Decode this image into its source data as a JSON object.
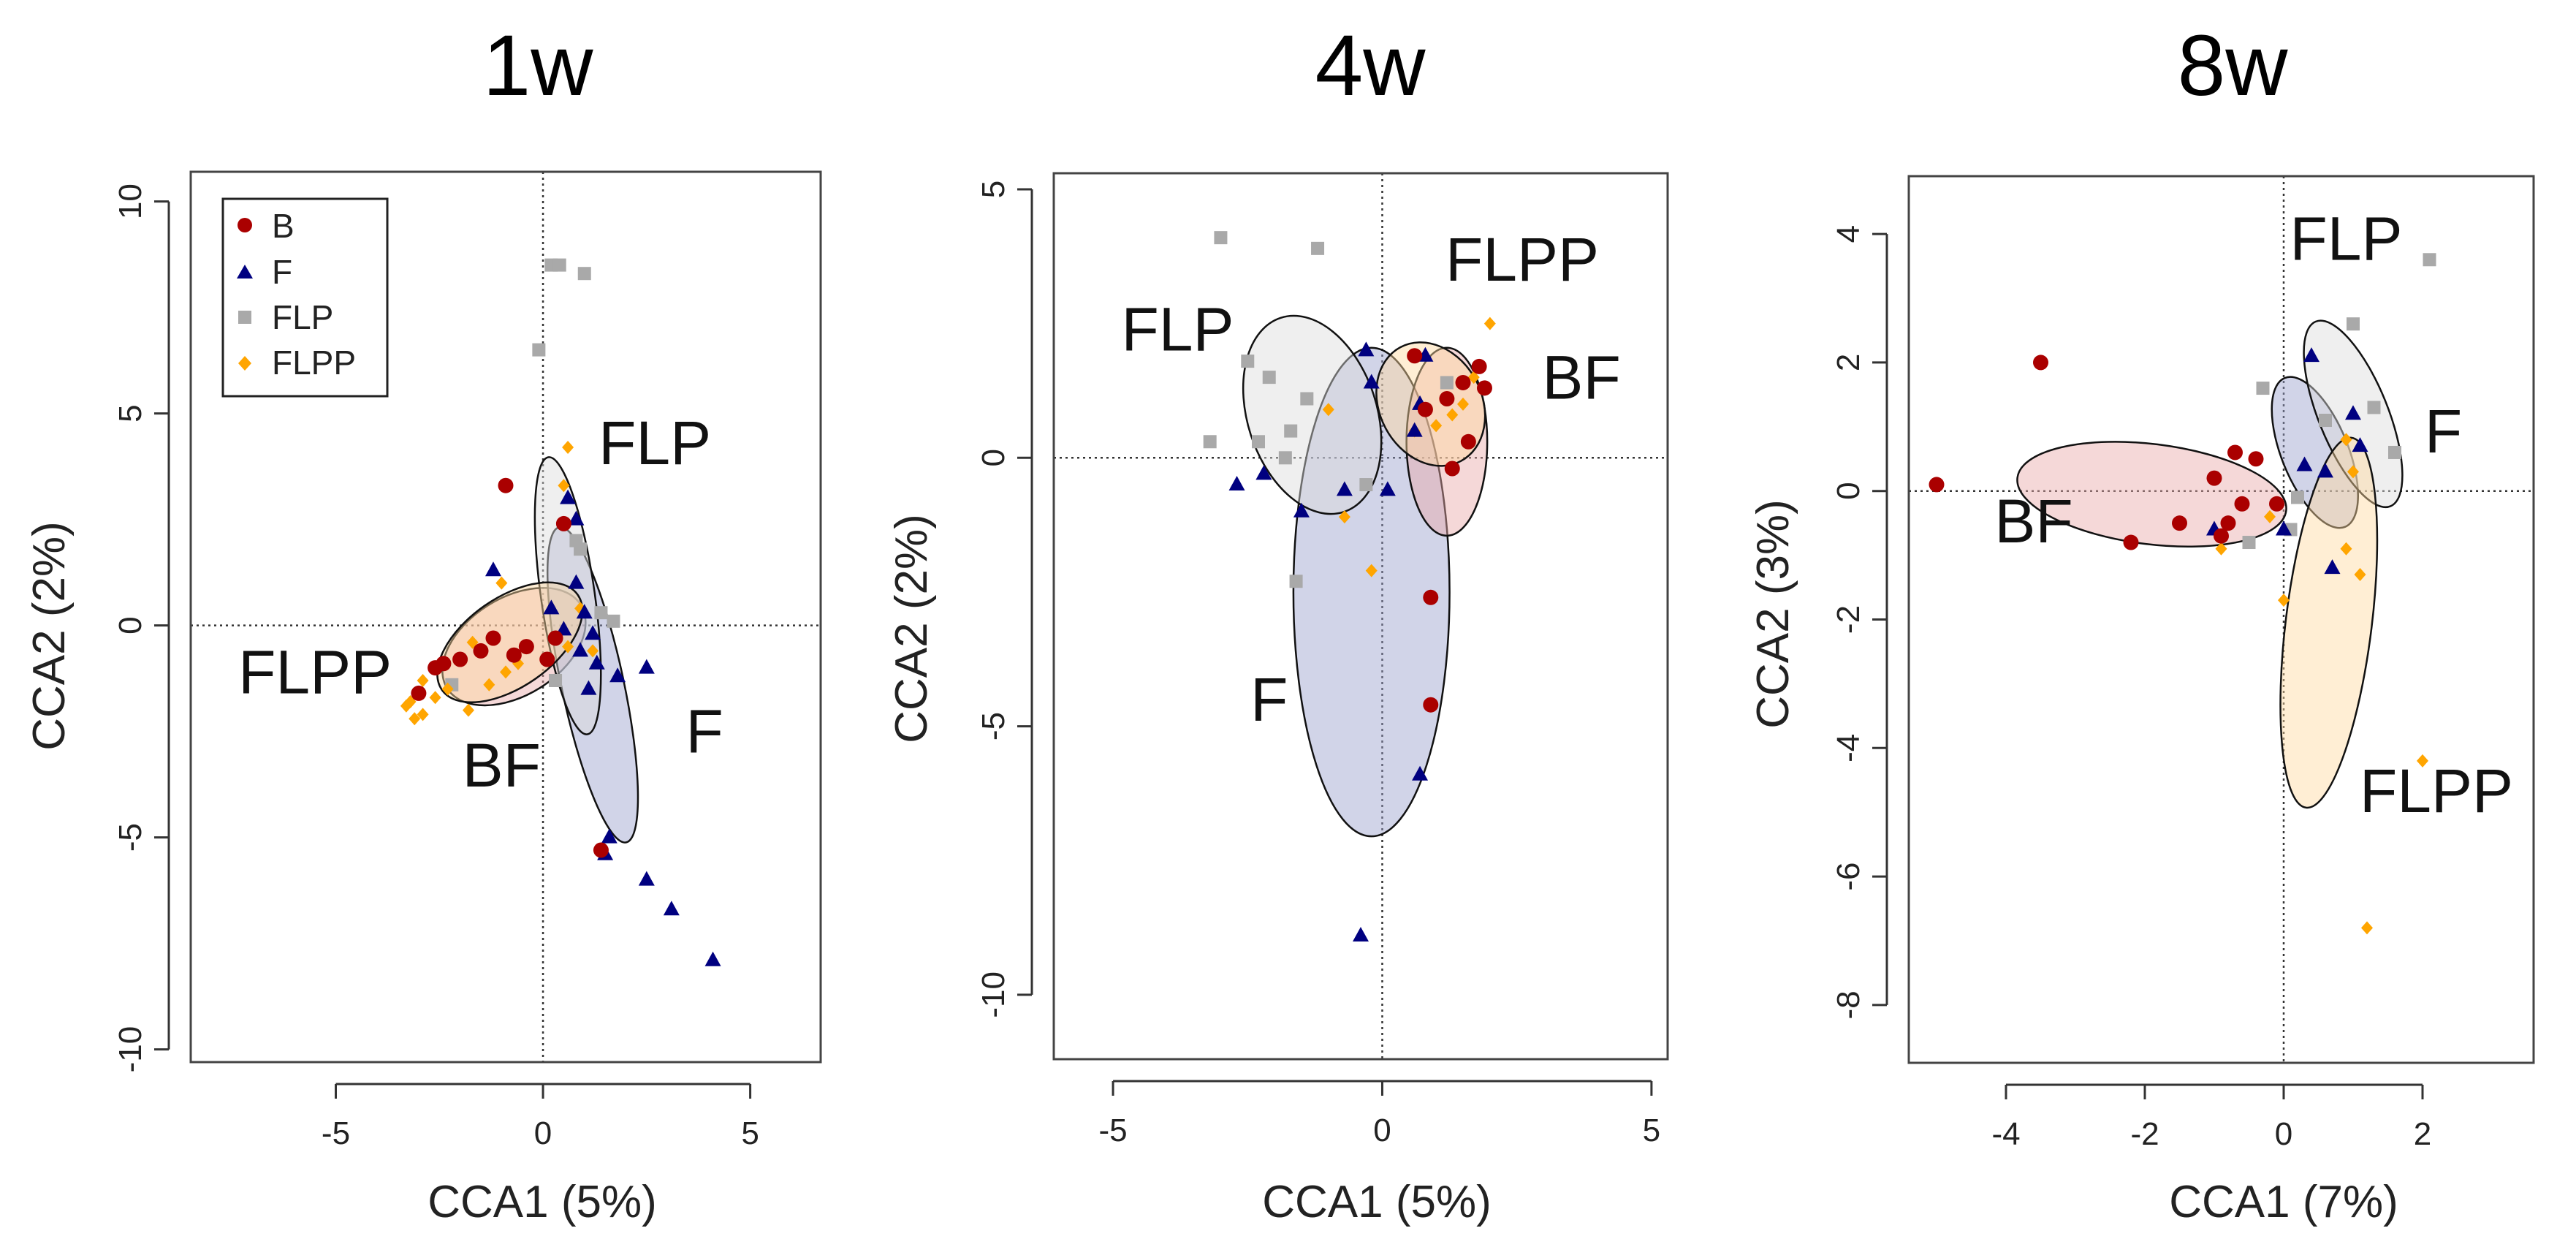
{
  "colors": {
    "B": "#aa0000",
    "F": "#000080",
    "FLP": "#a9a9a9",
    "FLPP": "#ffa500",
    "ellipse_B": "#e8a8a8",
    "ellipse_F": "#9aa0cc",
    "ellipse_FLP": "#dcdcdc",
    "ellipse_FLPP": "#ffd9a0"
  },
  "legend": {
    "entries": [
      {
        "label": "B",
        "group": "B",
        "marker": "circle"
      },
      {
        "label": "F",
        "group": "F",
        "marker": "triangle"
      },
      {
        "label": "FLP",
        "group": "FLP",
        "marker": "square"
      },
      {
        "label": "FLPP",
        "group": "FLPP",
        "marker": "diamond"
      }
    ]
  },
  "chart_data": [
    {
      "type": "scatter",
      "title": "1w",
      "xlabel": "CCA1 (5%)",
      "ylabel": "CCA2 (2%)",
      "xlim": [
        -8.5,
        6.7
      ],
      "ylim": [
        -10.3,
        10.7
      ],
      "xticks": [
        -5,
        0,
        5
      ],
      "yticks": [
        -10,
        -5,
        0,
        5,
        10
      ],
      "xtick_labels": [
        "-5",
        "0",
        "5"
      ],
      "ytick_labels": [
        "-10",
        "-5",
        "0",
        "5",
        "10"
      ],
      "refline_x": 0,
      "refline_y": 0,
      "has_legend": true,
      "group_labels": [
        {
          "text": "FLP",
          "x": 2.7,
          "y": 3.8
        },
        {
          "text": "FLPP",
          "x": -5.5,
          "y": -1.6
        },
        {
          "text": "BF",
          "x": -1.0,
          "y": -3.8
        },
        {
          "text": "F",
          "x": 3.9,
          "y": -3.0
        }
      ],
      "ellipses": [
        {
          "group": "B",
          "cx": -0.7,
          "cy": -0.5,
          "rx": 1.9,
          "ry": 1.15,
          "angle": 32
        },
        {
          "group": "F",
          "cx": 1.2,
          "cy": -1.4,
          "rx": 0.75,
          "ry": 3.8,
          "angle": 12
        },
        {
          "group": "FLP",
          "cx": 0.6,
          "cy": 0.7,
          "rx": 0.65,
          "ry": 3.3,
          "angle": 8
        },
        {
          "group": "FLPP",
          "cx": -0.8,
          "cy": -0.4,
          "rx": 2.0,
          "ry": 1.05,
          "angle": 35
        }
      ],
      "series": [
        {
          "name": "B",
          "points": [
            [
              -0.9,
              3.3
            ],
            [
              0.5,
              2.4
            ],
            [
              -3.0,
              -1.6
            ],
            [
              -2.6,
              -1.0
            ],
            [
              -2.4,
              -0.9
            ],
            [
              -2.0,
              -0.8
            ],
            [
              -1.5,
              -0.6
            ],
            [
              -1.2,
              -0.3
            ],
            [
              -0.7,
              -0.7
            ],
            [
              -0.4,
              -0.5
            ],
            [
              0.1,
              -0.8
            ],
            [
              0.3,
              -0.3
            ],
            [
              1.4,
              -5.3
            ]
          ]
        },
        {
          "name": "F",
          "points": [
            [
              -1.2,
              1.3
            ],
            [
              0.6,
              3.0
            ],
            [
              0.8,
              2.5
            ],
            [
              0.2,
              0.4
            ],
            [
              0.8,
              1.0
            ],
            [
              1.0,
              0.3
            ],
            [
              1.2,
              -0.2
            ],
            [
              0.9,
              -0.6
            ],
            [
              1.3,
              -0.9
            ],
            [
              1.8,
              -1.2
            ],
            [
              2.5,
              -1.0
            ],
            [
              1.1,
              -1.5
            ],
            [
              0.5,
              -0.1
            ],
            [
              1.6,
              -5.0
            ],
            [
              1.5,
              -5.4
            ],
            [
              2.5,
              -6.0
            ],
            [
              3.1,
              -6.7
            ],
            [
              4.1,
              -7.9
            ]
          ]
        },
        {
          "name": "FLP",
          "points": [
            [
              0.2,
              8.5
            ],
            [
              0.4,
              8.5
            ],
            [
              1.0,
              8.3
            ],
            [
              -0.1,
              6.5
            ],
            [
              0.8,
              2.0
            ],
            [
              0.9,
              1.8
            ],
            [
              1.4,
              0.3
            ],
            [
              1.7,
              0.1
            ],
            [
              -2.2,
              -1.4
            ],
            [
              0.3,
              -1.3
            ]
          ]
        },
        {
          "name": "FLPP",
          "points": [
            [
              0.6,
              4.2
            ],
            [
              0.5,
              3.3
            ],
            [
              -1.0,
              1.0
            ],
            [
              -1.7,
              -0.4
            ],
            [
              -2.9,
              -1.3
            ],
            [
              -3.2,
              -1.8
            ],
            [
              -3.3,
              -1.9
            ],
            [
              -3.1,
              -2.2
            ],
            [
              -2.9,
              -2.1
            ],
            [
              -2.6,
              -1.7
            ],
            [
              -2.3,
              -1.5
            ],
            [
              -1.8,
              -2.0
            ],
            [
              -1.3,
              -1.4
            ],
            [
              -0.9,
              -1.1
            ],
            [
              -0.6,
              -0.9
            ],
            [
              0.9,
              0.4
            ],
            [
              1.2,
              -0.6
            ],
            [
              0.6,
              -0.5
            ]
          ]
        }
      ]
    },
    {
      "type": "scatter",
      "title": "4w",
      "xlabel": "CCA1 (5%)",
      "ylabel": "CCA2 (2%)",
      "xlim": [
        -6.1,
        5.3
      ],
      "ylim": [
        -11.2,
        5.3
      ],
      "xticks": [
        -5,
        0,
        5
      ],
      "yticks": [
        -10,
        -5,
        0,
        5
      ],
      "xtick_labels": [
        "-5",
        "0",
        "5"
      ],
      "ytick_labels": [
        "-10",
        "-5",
        "0",
        "5"
      ],
      "refline_x": 0,
      "refline_y": 0,
      "has_legend": false,
      "group_labels": [
        {
          "text": "FLP",
          "x": -3.8,
          "y": 2.0
        },
        {
          "text": "FLPP",
          "x": 2.6,
          "y": 3.3
        },
        {
          "text": "BF",
          "x": 3.7,
          "y": 1.1
        },
        {
          "text": "F",
          "x": -2.1,
          "y": -4.9
        }
      ],
      "ellipses": [
        {
          "group": "F",
          "cx": -0.2,
          "cy": -2.5,
          "rx": 1.45,
          "ry": 4.55,
          "angle": 0
        },
        {
          "group": "FLP",
          "cx": -1.3,
          "cy": 0.8,
          "rx": 1.2,
          "ry": 1.9,
          "angle": 18
        },
        {
          "group": "B",
          "cx": 1.2,
          "cy": 0.3,
          "rx": 0.75,
          "ry": 1.75,
          "angle": 0
        },
        {
          "group": "FLPP",
          "cx": 0.9,
          "cy": 1.0,
          "rx": 0.95,
          "ry": 1.2,
          "angle": 28
        }
      ],
      "series": [
        {
          "name": "B",
          "points": [
            [
              0.6,
              1.9
            ],
            [
              1.8,
              1.7
            ],
            [
              1.5,
              1.4
            ],
            [
              1.9,
              1.3
            ],
            [
              1.2,
              1.1
            ],
            [
              0.8,
              0.9
            ],
            [
              1.6,
              0.3
            ],
            [
              1.3,
              -0.2
            ],
            [
              0.9,
              -2.6
            ],
            [
              0.9,
              -4.6
            ]
          ]
        },
        {
          "name": "F",
          "points": [
            [
              -0.3,
              2.0
            ],
            [
              -0.2,
              1.4
            ],
            [
              0.8,
              1.9
            ],
            [
              0.7,
              1.0
            ],
            [
              0.6,
              0.5
            ],
            [
              -2.7,
              -0.5
            ],
            [
              -2.2,
              -0.3
            ],
            [
              -1.5,
              -1.0
            ],
            [
              -0.7,
              -0.6
            ],
            [
              0.1,
              -0.6
            ],
            [
              0.7,
              -5.9
            ],
            [
              -0.4,
              -8.9
            ]
          ]
        },
        {
          "name": "FLP",
          "points": [
            [
              -3.0,
              4.1
            ],
            [
              -1.2,
              3.9
            ],
            [
              -2.5,
              1.8
            ],
            [
              -2.1,
              1.5
            ],
            [
              -1.4,
              1.1
            ],
            [
              -1.7,
              0.5
            ],
            [
              -2.3,
              0.3
            ],
            [
              -1.8,
              0.0
            ],
            [
              -3.2,
              0.3
            ],
            [
              -1.6,
              -2.3
            ],
            [
              -0.3,
              -0.5
            ],
            [
              1.2,
              1.4
            ]
          ]
        },
        {
          "name": "FLPP",
          "points": [
            [
              2.0,
              2.5
            ],
            [
              1.7,
              1.5
            ],
            [
              1.5,
              1.0
            ],
            [
              1.0,
              0.6
            ],
            [
              0.6,
              0.5
            ],
            [
              -1.0,
              0.9
            ],
            [
              -0.7,
              -1.1
            ],
            [
              -0.2,
              -2.1
            ],
            [
              1.3,
              0.8
            ]
          ]
        }
      ]
    },
    {
      "type": "scatter",
      "title": "8w",
      "xlabel": "CCA1 (7%)",
      "ylabel": "CCA2 (3%)",
      "xlim": [
        -5.4,
        3.6
      ],
      "ylim": [
        -8.9,
        4.9
      ],
      "xticks": [
        -4,
        -2,
        0,
        2
      ],
      "yticks": [
        -8,
        -6,
        -4,
        -2,
        0,
        2,
        4
      ],
      "xtick_labels": [
        "-4",
        "-2",
        "0",
        "2"
      ],
      "ytick_labels": [
        "-8",
        "-6",
        "-4",
        "-2",
        "0",
        "2",
        "4"
      ],
      "refline_x": 0,
      "refline_y": 0,
      "has_legend": false,
      "group_labels": [
        {
          "text": "FLP",
          "x": 0.9,
          "y": 3.6
        },
        {
          "text": "F",
          "x": 2.3,
          "y": 0.6
        },
        {
          "text": "BF",
          "x": -3.6,
          "y": -0.8
        },
        {
          "text": "FLPP",
          "x": 2.2,
          "y": -5.0
        }
      ],
      "ellipses": [
        {
          "group": "B",
          "cx": -1.9,
          "cy": -0.05,
          "rx": 1.95,
          "ry": 0.78,
          "angle": -7
        },
        {
          "group": "F",
          "cx": 0.45,
          "cy": 0.6,
          "rx": 0.48,
          "ry": 1.25,
          "angle": 22
        },
        {
          "group": "FLP",
          "cx": 1.0,
          "cy": 1.2,
          "rx": 0.5,
          "ry": 1.55,
          "angle": 22
        },
        {
          "group": "FLPP",
          "cx": 0.65,
          "cy": -2.05,
          "rx": 0.62,
          "ry": 2.9,
          "angle": -7
        }
      ],
      "series": [
        {
          "name": "B",
          "points": [
            [
              -3.5,
              2.0
            ],
            [
              -5.0,
              0.1
            ],
            [
              -0.7,
              0.6
            ],
            [
              -0.4,
              0.5
            ],
            [
              -1.0,
              0.2
            ],
            [
              -0.6,
              -0.2
            ],
            [
              -1.5,
              -0.5
            ],
            [
              -2.2,
              -0.8
            ],
            [
              -0.9,
              -0.7
            ],
            [
              -0.8,
              -0.5
            ],
            [
              -0.1,
              -0.2
            ]
          ]
        },
        {
          "name": "F",
          "points": [
            [
              0.4,
              2.1
            ],
            [
              1.0,
              1.2
            ],
            [
              0.3,
              0.4
            ],
            [
              0.6,
              0.3
            ],
            [
              1.1,
              0.7
            ],
            [
              0.7,
              -1.2
            ],
            [
              -1.0,
              -0.6
            ],
            [
              0.0,
              -0.6
            ]
          ]
        },
        {
          "name": "FLP",
          "points": [
            [
              2.1,
              3.6
            ],
            [
              1.0,
              2.6
            ],
            [
              -0.3,
              1.6
            ],
            [
              1.3,
              1.3
            ],
            [
              0.6,
              1.1
            ],
            [
              1.6,
              0.6
            ],
            [
              0.2,
              -0.1
            ],
            [
              -0.5,
              -0.8
            ],
            [
              0.1,
              -0.6
            ]
          ]
        },
        {
          "name": "FLPP",
          "points": [
            [
              0.9,
              0.8
            ],
            [
              1.0,
              0.3
            ],
            [
              -0.2,
              -0.4
            ],
            [
              0.0,
              -1.7
            ],
            [
              0.9,
              -0.9
            ],
            [
              1.1,
              -1.3
            ],
            [
              -0.9,
              -0.9
            ],
            [
              2.0,
              -4.2
            ],
            [
              1.2,
              -6.8
            ]
          ]
        }
      ]
    }
  ]
}
